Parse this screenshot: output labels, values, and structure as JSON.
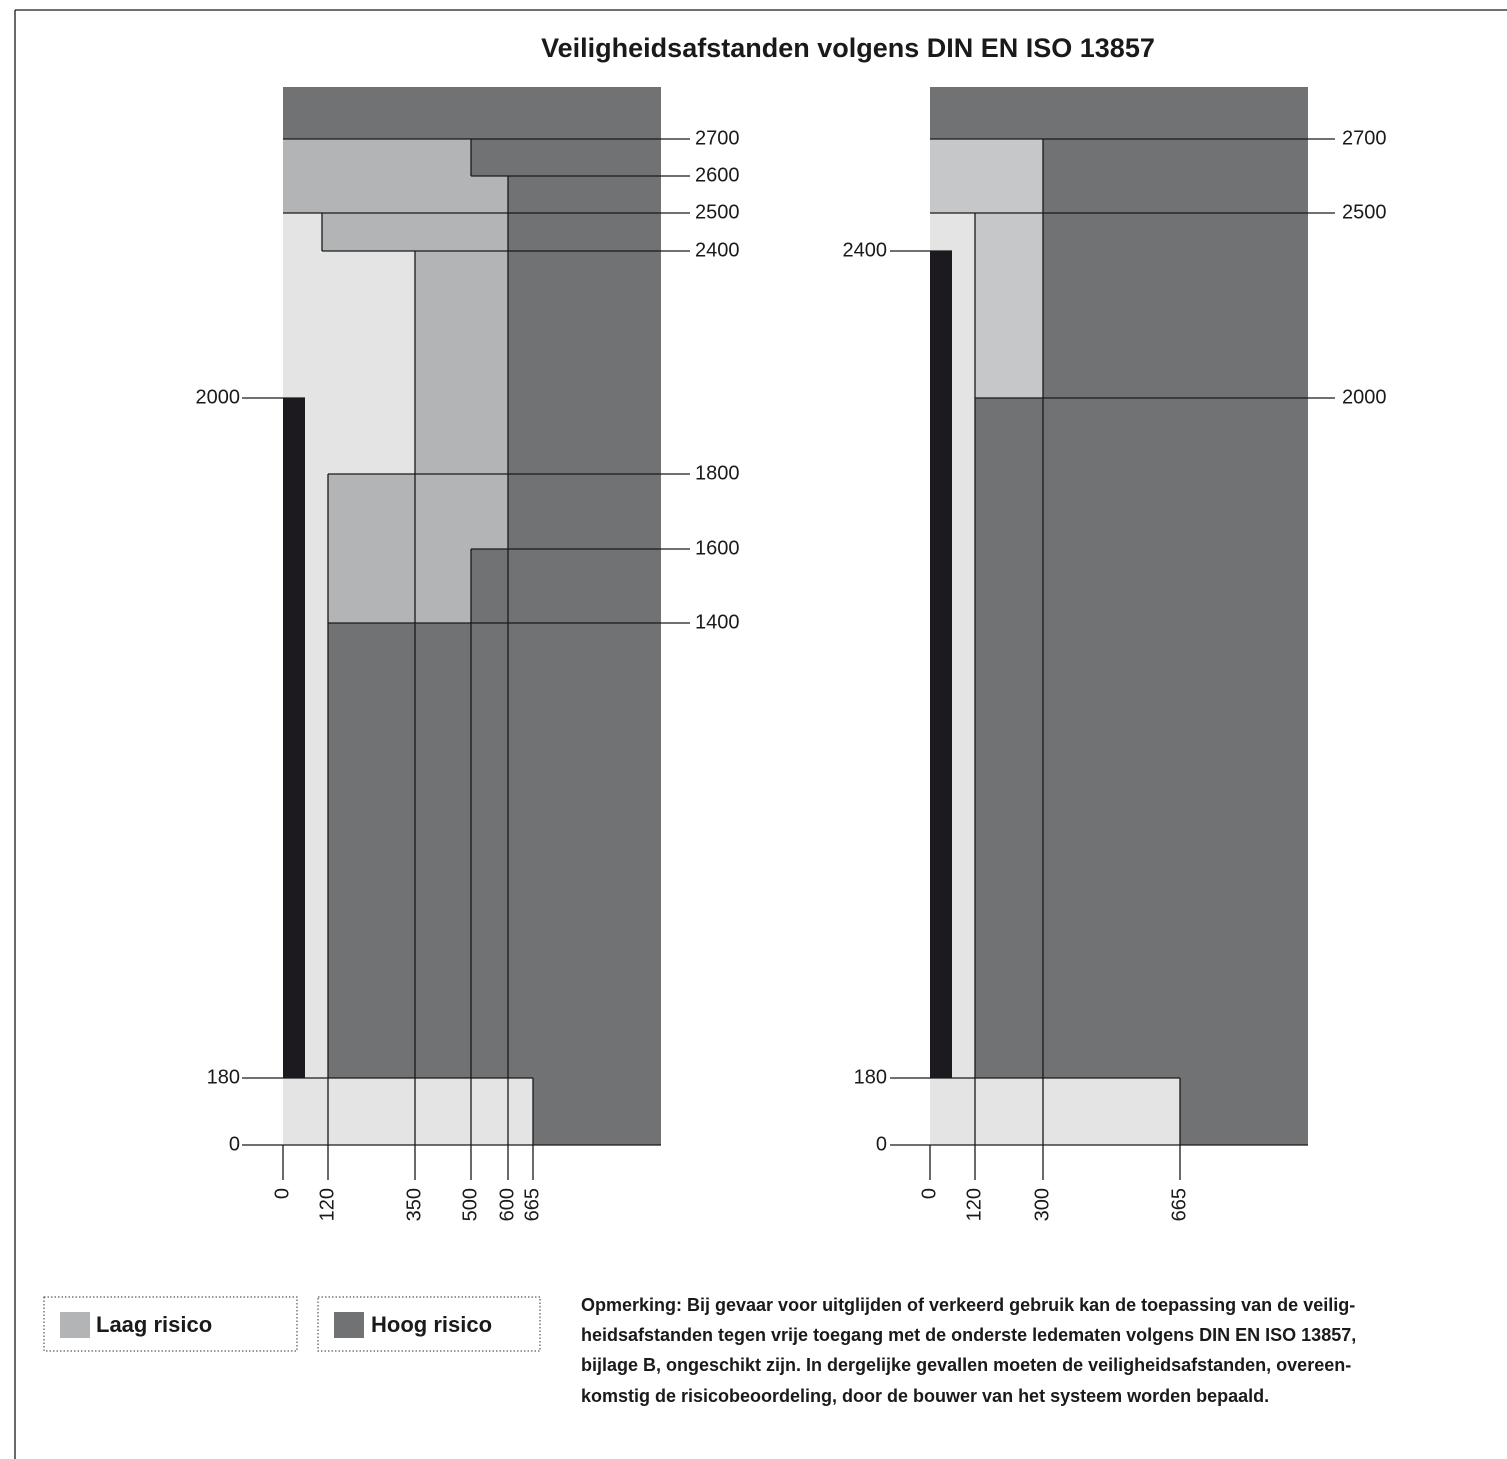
{
  "title": "Veiligheidsafstanden volgens DIN EN ISO 13857",
  "left_diagram": {
    "right_labels": [
      "2700",
      "2600",
      "2500",
      "2400",
      "1800",
      "1600",
      "1400"
    ],
    "left_labels": [
      "2000",
      "180",
      "0"
    ],
    "bottom_labels": [
      "0",
      "120",
      "350",
      "500",
      "600",
      "665"
    ]
  },
  "right_diagram": {
    "right_labels": [
      "2700",
      "2500",
      "2000"
    ],
    "left_labels": [
      "2400",
      "180",
      "0"
    ],
    "bottom_labels": [
      "0",
      "120",
      "300",
      "665"
    ]
  },
  "legend": [
    "Laag risico",
    "Hoog risico"
  ],
  "note": [
    "Opmerking: Bij gevaar voor uitglijden of verkeerd gebruik kan de toepassing van de veilig-",
    "heidsafstanden tegen vrije toegang met de onderste ledematen volgens DIN EN ISO 13857,",
    "bijlage B, ongeschikt zijn. In dergelijke gevallen moeten de veiligheidsafstanden, overeen-",
    "komstig de risicobeoordeling, door de bouwer van het systeem worden bepaald."
  ]
}
